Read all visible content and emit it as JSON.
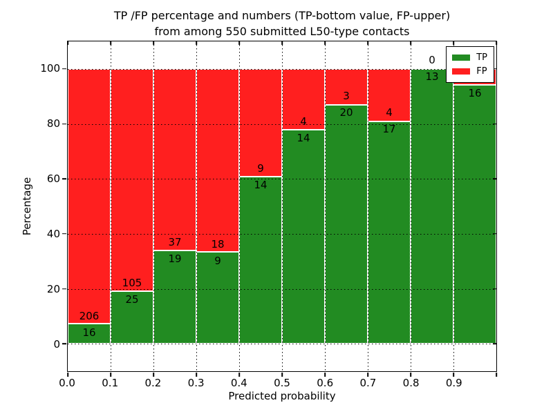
{
  "chart_data": {
    "type": "bar",
    "variant": "stacked-100-percent",
    "title_line1": "TP /FP percentage and numbers (TP-bottom value, FP-upper)",
    "title_line2": "from among 550 submitted L50-type contacts",
    "xlabel": "Predicted probability",
    "ylabel": "Percentage",
    "xlim": [
      0.0,
      1.0
    ],
    "ylim": [
      -10,
      110
    ],
    "bin_width": 0.1,
    "bin_starts": [
      0.0,
      0.1,
      0.2,
      0.3,
      0.4,
      0.5,
      0.6,
      0.7,
      0.8,
      0.9
    ],
    "xtick_labels": [
      "0.0",
      "0.1",
      "0.2",
      "0.3",
      "0.4",
      "0.5",
      "0.6",
      "0.7",
      "0.8",
      "0.9"
    ],
    "ytick_values": [
      0,
      20,
      40,
      60,
      80,
      100
    ],
    "series": [
      {
        "name": "TP",
        "color": "#228b22",
        "values": [
          16,
          25,
          19,
          9,
          14,
          14,
          20,
          17,
          13,
          16
        ]
      },
      {
        "name": "FP",
        "color": "#ff1f1f",
        "values": [
          206,
          105,
          37,
          18,
          9,
          4,
          3,
          4,
          0,
          1
        ]
      }
    ],
    "tp_percent_of_bin": [
      7.2,
      19.2,
      33.9,
      33.3,
      60.9,
      77.8,
      87.0,
      81.0,
      100.0,
      94.1
    ],
    "legend": {
      "position": "upper-right",
      "entries": [
        {
          "label": "TP",
          "color": "#228b22"
        },
        {
          "label": "FP",
          "color": "#ff1f1f"
        }
      ]
    },
    "grid": {
      "visible": true,
      "style": "dotted",
      "color": "#000000"
    },
    "colors": {
      "tp": "#228b22",
      "fp": "#ff1f1f",
      "background": "#ffffff",
      "axes": "#000000"
    }
  }
}
